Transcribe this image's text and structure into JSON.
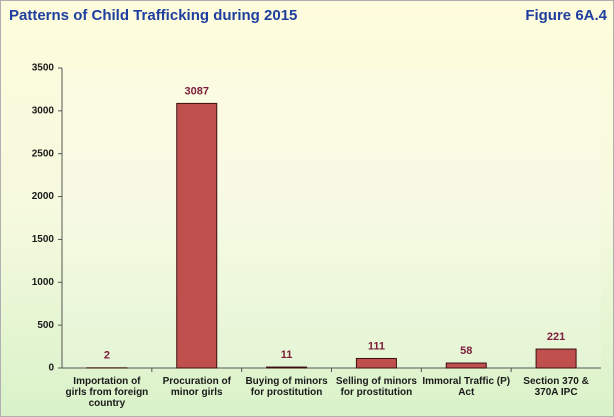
{
  "chart_data": {
    "type": "bar",
    "title": "Patterns of Child Trafficking during 2015",
    "figure_label": "Figure 6A.4",
    "categories": [
      "Importation of girls from foreign country",
      "Procuration of minor girls",
      "Buying of minors for prostitution",
      "Selling of minors for prostitution",
      "Immoral Traffic (P) Act",
      "Section 370 & 370A IPC"
    ],
    "values": [
      2,
      3087,
      11,
      111,
      58,
      221
    ],
    "color": "#c0504d",
    "ylim": [
      0,
      3500
    ],
    "yticks": [
      0,
      500,
      1000,
      1500,
      2000,
      2500,
      3000,
      3500
    ],
    "grid": false
  }
}
